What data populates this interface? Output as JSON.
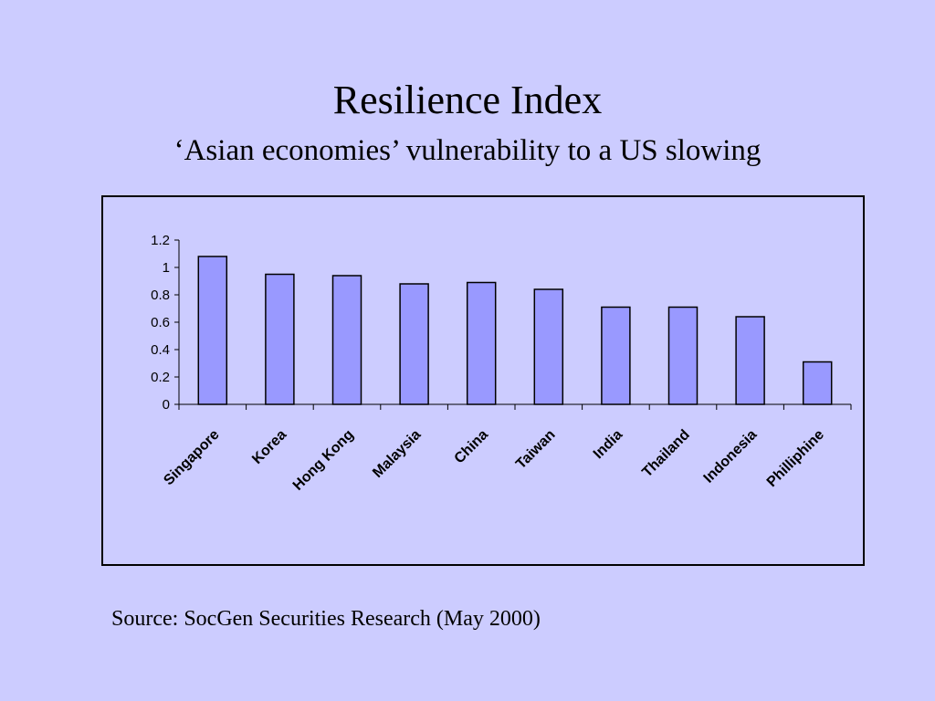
{
  "slide": {
    "title": "Resilience Index",
    "subtitle": "‘Asian economies’ vulnerability to a US slowing",
    "source": "Source: SocGen Securities Research (May 2000)"
  },
  "colors": {
    "background": "#ccccff",
    "bar_fill": "#9999ff",
    "bar_stroke": "#000000"
  },
  "chart_data": {
    "type": "bar",
    "title": "",
    "xlabel": "",
    "ylabel": "",
    "categories": [
      "Singapore",
      "Korea",
      "Hong Kong",
      "Malaysia",
      "China",
      "Taiwan",
      "India",
      "Thailand",
      "Indonesia",
      "Philliphine"
    ],
    "values": [
      1.08,
      0.95,
      0.94,
      0.88,
      0.89,
      0.84,
      0.71,
      0.71,
      0.64,
      0.31
    ],
    "ylim": [
      0,
      1.2
    ],
    "yticks": [
      "0",
      "0.2",
      "0.4",
      "0.6",
      "0.8",
      "1",
      "1.2"
    ],
    "grid": false,
    "legend": "none"
  }
}
